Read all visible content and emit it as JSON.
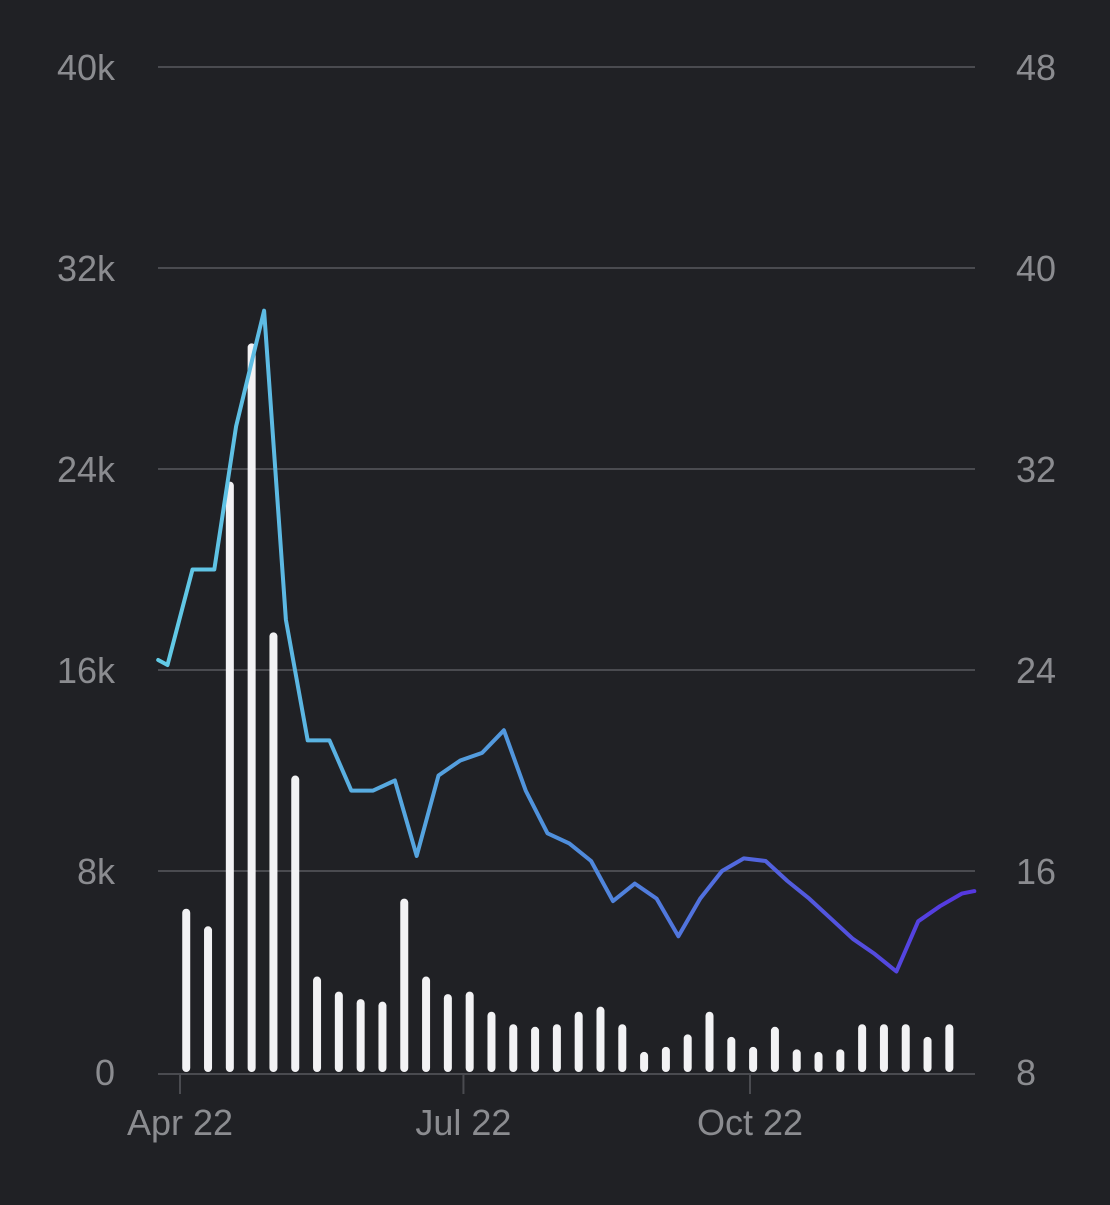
{
  "colors": {
    "background": "#202125",
    "grid": "#4a4b50",
    "tick_text": "#8b8c90",
    "bars": "#f2f2f4",
    "line_start": "#62cbe6",
    "line_mid": "#4f8fdc",
    "line_end": "#5538e0"
  },
  "chart_data": {
    "type": "bar",
    "title": "",
    "xlabel": "",
    "ylabel": "",
    "y2label": "",
    "x_ticks": [
      "Apr 22",
      "Jul 22",
      "Oct 22"
    ],
    "x_tick_dates": [
      "2022-04-01",
      "2022-07-01",
      "2022-10-01"
    ],
    "x_range": [
      "2022-03-25",
      "2022-12-31"
    ],
    "y_left": {
      "ticks": [
        "0",
        "8k",
        "16k",
        "24k",
        "32k",
        "40k"
      ],
      "range": [
        0,
        40000
      ]
    },
    "y_right": {
      "ticks": [
        "8",
        "16",
        "24",
        "32",
        "40",
        "48"
      ],
      "range": [
        8,
        48
      ]
    },
    "grid": true,
    "bar_series": {
      "axis": "left",
      "x": [
        "2022-04-03",
        "2022-04-10",
        "2022-04-17",
        "2022-04-24",
        "2022-05-01",
        "2022-05-08",
        "2022-05-15",
        "2022-05-22",
        "2022-05-29",
        "2022-06-05",
        "2022-06-12",
        "2022-06-19",
        "2022-06-26",
        "2022-07-03",
        "2022-07-10",
        "2022-07-17",
        "2022-07-24",
        "2022-07-31",
        "2022-08-07",
        "2022-08-14",
        "2022-08-21",
        "2022-08-28",
        "2022-09-04",
        "2022-09-11",
        "2022-09-18",
        "2022-09-25",
        "2022-10-02",
        "2022-10-09",
        "2022-10-16",
        "2022-10-23",
        "2022-10-30",
        "2022-11-06",
        "2022-11-13",
        "2022-11-20",
        "2022-11-27",
        "2022-12-04",
        "2022-12-11"
      ],
      "values": [
        6500,
        5800,
        23500,
        29000,
        17500,
        11800,
        3800,
        3200,
        2900,
        2800,
        6900,
        3800,
        3100,
        3200,
        2400,
        1900,
        1800,
        1900,
        2400,
        2600,
        1900,
        800,
        1000,
        1500,
        2400,
        1400,
        1000,
        1800,
        900,
        800,
        900,
        1900,
        1900,
        1900,
        1400,
        1900,
        0
      ]
    },
    "line_series": {
      "axis": "right",
      "x": [
        "2022-03-25",
        "2022-03-28",
        "2022-04-05",
        "2022-04-12",
        "2022-04-19",
        "2022-04-28",
        "2022-05-05",
        "2022-05-12",
        "2022-05-19",
        "2022-05-26",
        "2022-06-02",
        "2022-06-09",
        "2022-06-16",
        "2022-06-23",
        "2022-06-30",
        "2022-07-07",
        "2022-07-14",
        "2022-07-21",
        "2022-07-28",
        "2022-08-04",
        "2022-08-11",
        "2022-08-18",
        "2022-08-25",
        "2022-09-01",
        "2022-09-08",
        "2022-09-15",
        "2022-09-22",
        "2022-09-29",
        "2022-10-06",
        "2022-10-13",
        "2022-10-20",
        "2022-10-27",
        "2022-11-03",
        "2022-11-10",
        "2022-11-17",
        "2022-11-24",
        "2022-12-01",
        "2022-12-08",
        "2022-12-12"
      ],
      "values": [
        24.4,
        24.2,
        28.0,
        28.0,
        33.7,
        38.3,
        26.0,
        21.2,
        21.2,
        19.2,
        19.2,
        19.6,
        16.6,
        19.8,
        20.4,
        20.7,
        21.6,
        19.2,
        17.5,
        17.1,
        16.4,
        14.8,
        15.5,
        14.9,
        13.4,
        14.9,
        16.0,
        16.5,
        16.4,
        15.6,
        14.9,
        14.1,
        13.3,
        12.7,
        12.0,
        14.0,
        14.6,
        15.1,
        15.2
      ]
    }
  }
}
